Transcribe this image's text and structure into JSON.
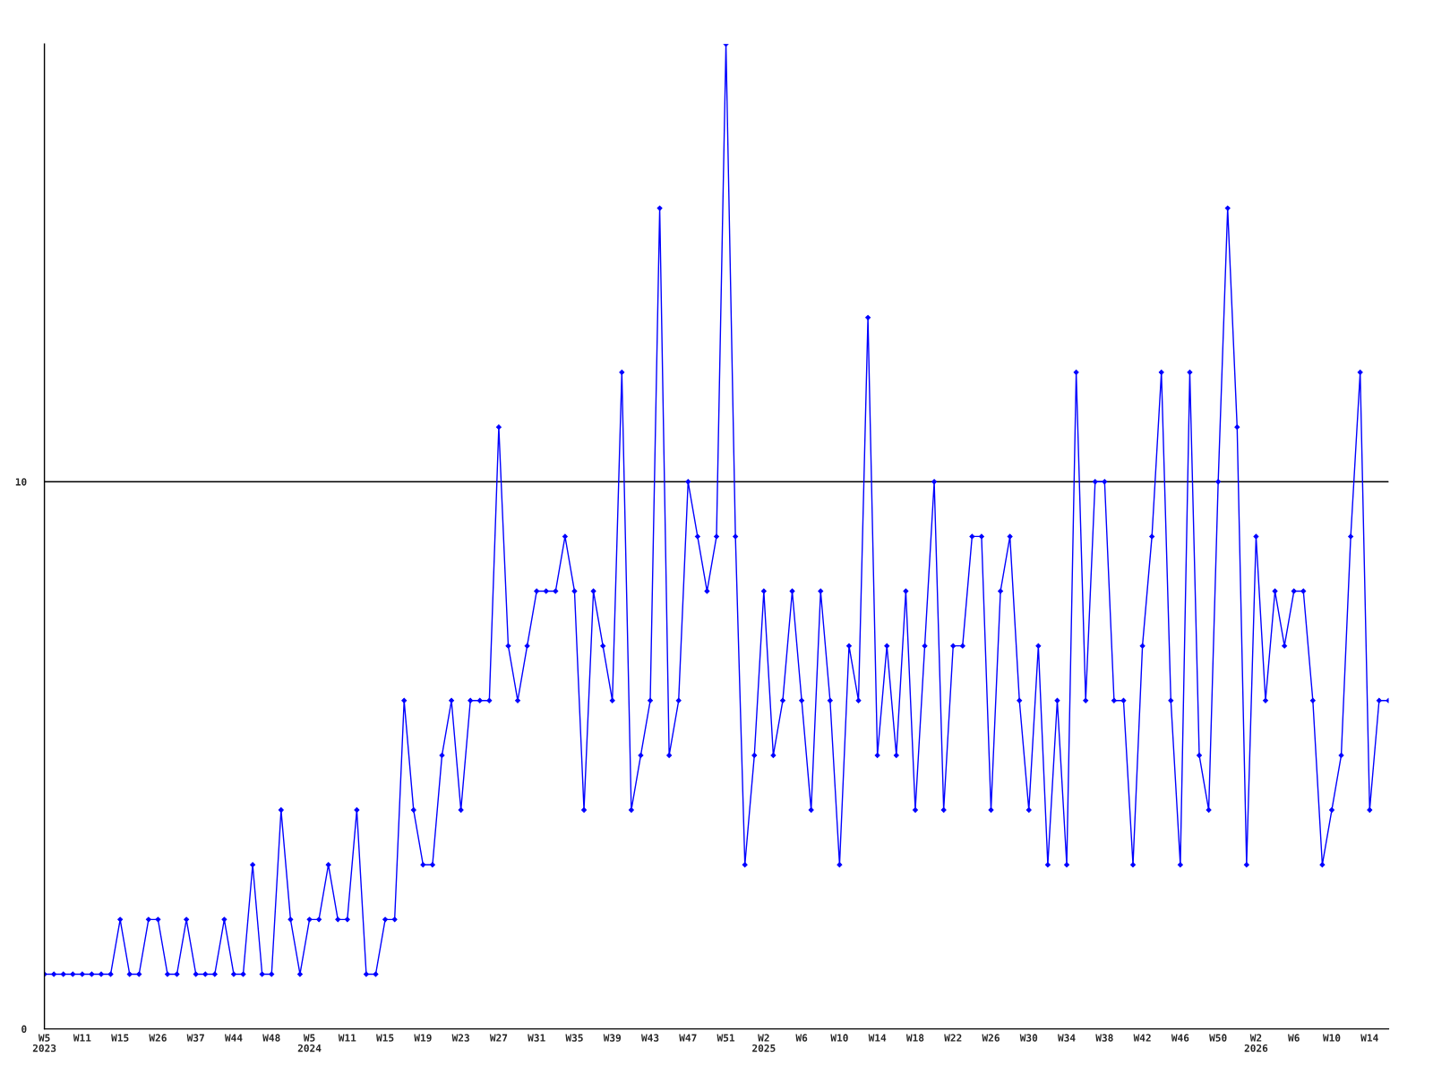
{
  "chart_data": {
    "type": "line",
    "categories": [
      "W5\n2023",
      null,
      null,
      null,
      "W11",
      null,
      null,
      null,
      "W15",
      null,
      null,
      null,
      "W26",
      null,
      null,
      null,
      "W37",
      null,
      null,
      null,
      "W44",
      null,
      null,
      null,
      "W48",
      null,
      null,
      null,
      "W5\n2024",
      null,
      null,
      null,
      "W11",
      null,
      null,
      null,
      "W15",
      null,
      null,
      null,
      "W19",
      null,
      null,
      null,
      "W23",
      null,
      null,
      null,
      "W27",
      null,
      null,
      null,
      "W31",
      null,
      null,
      null,
      "W35",
      null,
      null,
      null,
      "W39",
      null,
      null,
      null,
      "W43",
      null,
      null,
      null,
      "W47",
      null,
      null,
      null,
      "W51",
      null,
      null,
      null,
      "W2\n2025",
      null,
      null,
      null,
      "W6",
      null,
      null,
      null,
      "W10",
      null,
      null,
      null,
      "W14",
      null,
      null,
      null,
      "W18",
      null,
      null,
      null,
      "W22",
      null,
      null,
      null,
      "W26",
      null,
      null,
      null,
      "W30",
      null,
      null,
      null,
      "W34",
      null,
      null,
      null,
      "W38",
      null,
      null,
      null,
      "W42",
      null,
      null,
      null,
      "W46",
      null,
      null,
      null,
      "W50",
      null,
      null,
      null,
      "W2\n2026",
      null,
      null,
      null,
      "W6",
      null,
      null,
      null,
      "W10",
      null,
      null,
      null,
      "W14",
      null,
      null
    ],
    "series": [
      {
        "color": "#0000ff",
        "values": [
          1,
          1,
          1,
          1,
          1,
          1,
          1,
          1,
          2,
          1,
          1,
          2,
          2,
          1,
          1,
          2,
          1,
          1,
          1,
          2,
          1,
          1,
          3,
          1,
          1,
          4,
          2,
          1,
          2,
          2,
          3,
          2,
          2,
          4,
          1,
          1,
          2,
          2,
          6,
          4,
          3,
          3,
          5,
          6,
          4,
          6,
          6,
          6,
          11,
          7,
          6,
          7,
          8,
          8,
          8,
          9,
          8,
          4,
          8,
          7,
          6,
          12,
          4,
          5,
          6,
          15,
          5,
          6,
          10,
          9,
          8,
          9,
          18,
          9,
          3,
          5,
          8,
          5,
          6,
          8,
          6,
          4,
          8,
          6,
          3,
          7,
          6,
          13,
          5,
          7,
          5,
          8,
          4,
          7,
          10,
          4,
          7,
          7,
          9,
          9,
          4,
          8,
          9,
          6,
          4,
          7,
          3,
          6,
          3,
          12,
          6,
          10,
          10,
          6,
          6,
          3,
          7,
          9,
          12,
          6,
          3,
          12,
          5,
          4,
          10,
          15,
          11,
          3,
          9,
          6,
          8,
          7,
          8,
          8,
          6,
          3,
          4,
          5,
          9,
          12,
          4,
          6,
          6
        ]
      }
    ],
    "ylim": [
      0,
      18
    ],
    "yticks": [
      0,
      10
    ],
    "grid": "y",
    "marker": "diamond",
    "line_style": "solid"
  }
}
